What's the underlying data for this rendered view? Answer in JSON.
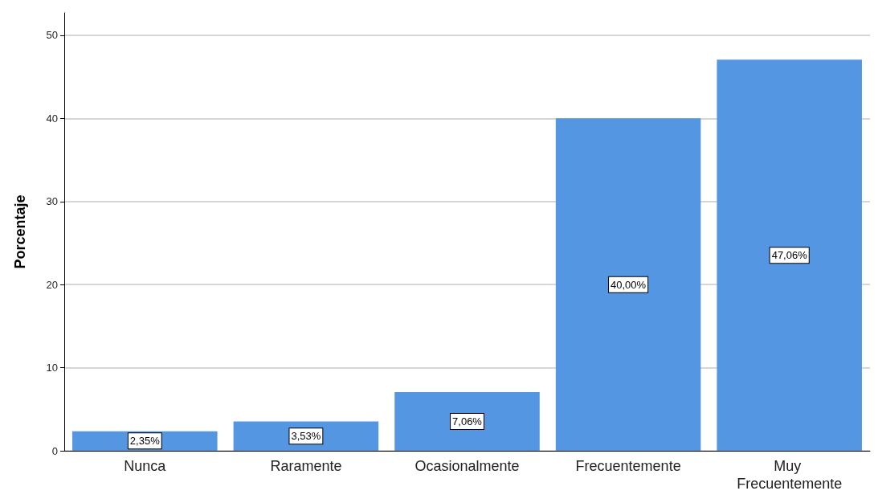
{
  "chart_data": {
    "type": "bar",
    "ylabel": "Porcentaje",
    "categories": [
      "Nunca",
      "Raramente",
      "Ocasionalmente",
      "Frecuentemente",
      "Muy Frecuentemente"
    ],
    "values": [
      2.35,
      3.53,
      7.06,
      40.0,
      47.06
    ],
    "value_labels": [
      "2,35%",
      "3,53%",
      "7,06%",
      "40,00%",
      "47,06%"
    ],
    "color": "#5596e3",
    "ylim": [
      0,
      52.7
    ],
    "yticks": [
      0,
      10,
      20,
      30,
      40,
      50
    ],
    "grid": "y"
  }
}
